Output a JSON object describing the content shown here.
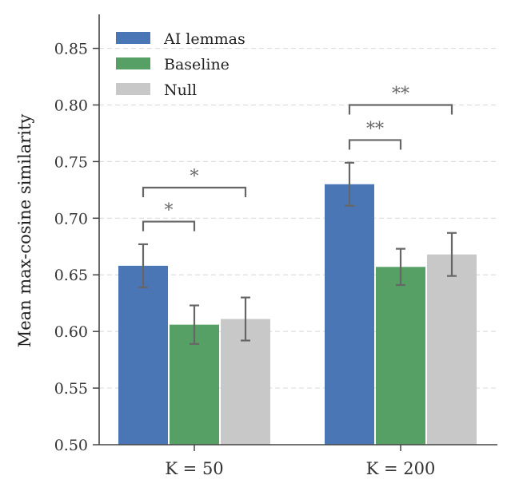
{
  "chart_data": {
    "type": "bar",
    "title": "",
    "xlabel": "",
    "ylabel": "Mean max-cosine similarity",
    "ylim": [
      0.5,
      0.88
    ],
    "yticks": [
      0.5,
      0.55,
      0.6,
      0.65,
      0.7,
      0.75,
      0.8,
      0.85
    ],
    "ytick_labels": [
      "0.50",
      "0.55",
      "0.60",
      "0.65",
      "0.70",
      "0.75",
      "0.80",
      "0.85"
    ],
    "categories": [
      "K = 50",
      "K = 200"
    ],
    "grid": "horizontal-dashed",
    "legend_position": "top-left",
    "series": [
      {
        "name": "AI lemmas",
        "color": "#4a76b6",
        "values": [
          0.658,
          0.73
        ],
        "errors": [
          0.019,
          0.019
        ]
      },
      {
        "name": "Baseline",
        "color": "#57a065",
        "values": [
          0.606,
          0.657
        ],
        "errors": [
          0.017,
          0.016
        ]
      },
      {
        "name": "Null",
        "color": "#c8c8c8",
        "values": [
          0.611,
          0.668
        ],
        "errors": [
          0.019,
          0.019
        ]
      }
    ],
    "significance": [
      {
        "category": 0,
        "from_series": 0,
        "to_series": 1,
        "y": 0.697,
        "label": "*"
      },
      {
        "category": 0,
        "from_series": 0,
        "to_series": 2,
        "y": 0.727,
        "label": "*"
      },
      {
        "category": 1,
        "from_series": 0,
        "to_series": 1,
        "y": 0.769,
        "label": "**"
      },
      {
        "category": 1,
        "from_series": 0,
        "to_series": 2,
        "y": 0.8,
        "label": "**"
      }
    ]
  }
}
